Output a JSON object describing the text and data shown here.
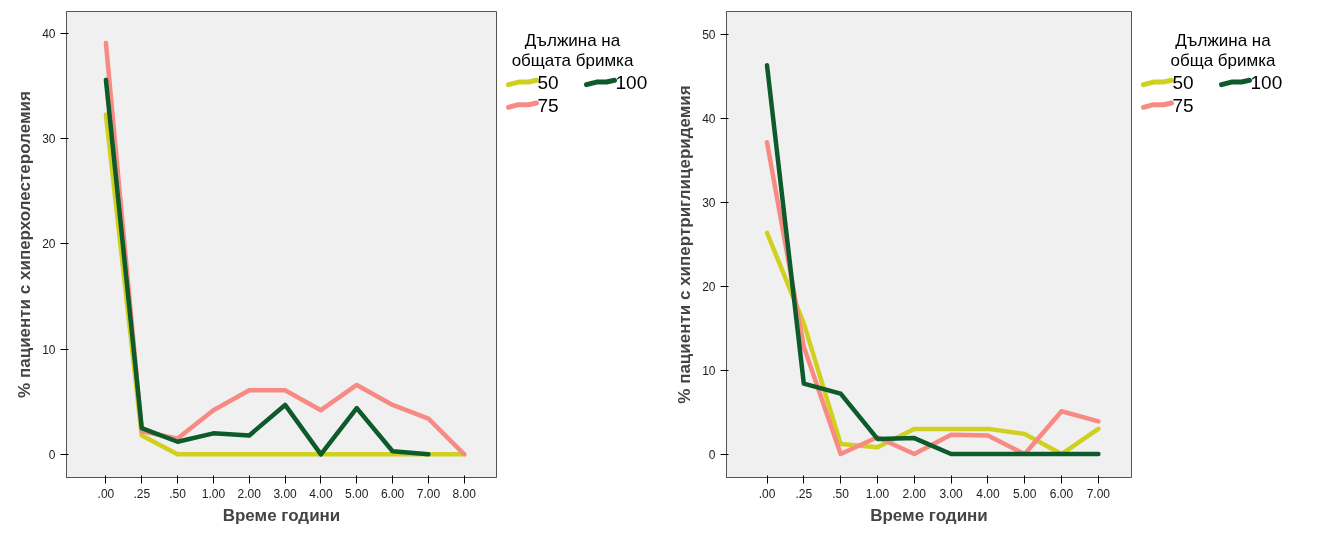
{
  "chart_data": [
    {
      "type": "line",
      "xlabel": "Време години",
      "ylabel": "% пациенти с хиперхолестеролемия",
      "legend_title": "Дължина на общата бримка",
      "categories": [
        ".00",
        ".25",
        ".50",
        "1.00",
        "2.00",
        "3.00",
        "4.00",
        "5.00",
        "6.00",
        "7.00",
        "8.00"
      ],
      "ylim": [
        -2.2,
        42.1
      ],
      "yticks": [
        0,
        10,
        20,
        30,
        40
      ],
      "grid": false,
      "legend": "right",
      "marker": "none",
      "line_style": "solid",
      "series": [
        {
          "name": "50",
          "color": "#d0d020",
          "values": [
            32.3,
            1.8,
            0,
            0,
            0,
            0,
            0,
            0,
            0,
            0,
            0
          ]
        },
        {
          "name": "75",
          "color": "#f88a84",
          "values": [
            39.1,
            2.2,
            1.5,
            4.2,
            6.1,
            6.1,
            4.2,
            6.6,
            4.7,
            3.4,
            0
          ]
        },
        {
          "name": "100",
          "color": "#0d5a2a",
          "values": [
            35.6,
            2.5,
            1.2,
            2.0,
            1.8,
            4.7,
            0,
            4.4,
            0.3,
            0,
            null
          ]
        }
      ]
    },
    {
      "type": "line",
      "xlabel": "Време години",
      "ylabel": "% пациенти с хипертриглицеридемия",
      "legend_title": "Дължина на обща бримка",
      "categories": [
        ".00",
        ".25",
        ".50",
        "1.00",
        "2.00",
        "3.00",
        "4.00",
        "5.00",
        "6.00",
        "7.00"
      ],
      "ylim": [
        -2.8,
        52.8
      ],
      "yticks": [
        0,
        10,
        20,
        30,
        40,
        50
      ],
      "grid": false,
      "legend": "right",
      "marker": "none",
      "line_style": "solid",
      "series": [
        {
          "name": "50",
          "color": "#d0d020",
          "values": [
            26.4,
            15.6,
            1.2,
            0.8,
            3,
            3,
            3,
            2.4,
            0,
            3
          ]
        },
        {
          "name": "75",
          "color": "#f88a84",
          "values": [
            37.2,
            12.8,
            0,
            2,
            0,
            2.3,
            2.2,
            0,
            5.1,
            3.9
          ]
        },
        {
          "name": "100",
          "color": "#0d5a2a",
          "values": [
            46.4,
            8.4,
            7.2,
            1.8,
            1.9,
            0,
            0,
            0,
            0,
            0
          ]
        }
      ]
    }
  ]
}
